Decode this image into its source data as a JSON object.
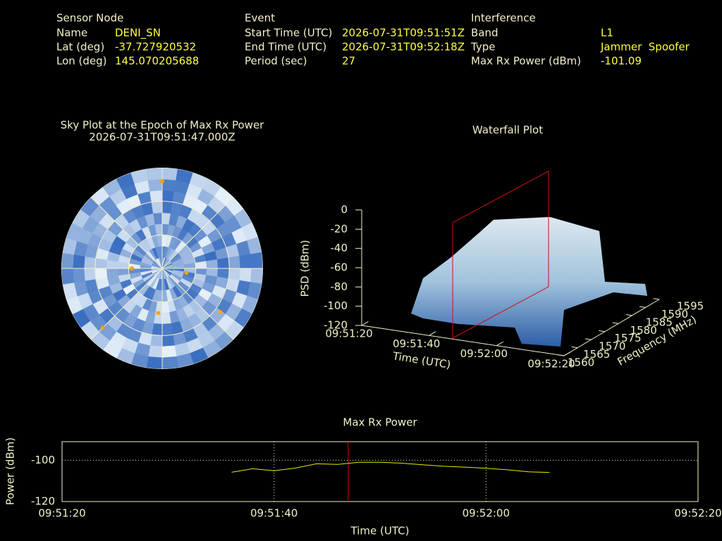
{
  "header": {
    "sensor_node": {
      "title": "Sensor Node",
      "fields": [
        {
          "label": "Name",
          "value": "DENI_SN"
        },
        {
          "label": "Lat (deg)",
          "value": "-37.727920532"
        },
        {
          "label": "Lon (deg)",
          "value": "145.070205688"
        }
      ]
    },
    "event": {
      "title": "Event",
      "fields": [
        {
          "label": "Start Time (UTC)",
          "value": "2026-07-31T09:51:51Z"
        },
        {
          "label": "End Time (UTC)",
          "value": "2026-07-31T09:52:18Z"
        },
        {
          "label": "Period (sec)",
          "value": "27"
        }
      ]
    },
    "interference": {
      "title": "Interference",
      "fields": [
        {
          "label": "Band",
          "value": "L1"
        },
        {
          "label": "Type",
          "value": "Jammer  Spoofer"
        },
        {
          "label": "Max Rx Power (dBm)",
          "value": "-101.09"
        }
      ]
    }
  },
  "chart_data": [
    {
      "type": "polar",
      "title": "Sky Plot at the Epoch of Max Rx Power",
      "subtitle": "2026-07-31T09:51:47.000Z",
      "azimuth": [
        0,
        270,
        100,
        185,
        127,
        225
      ],
      "elevation": [
        12,
        63,
        68,
        50,
        25,
        15
      ],
      "color": "#ffa500",
      "elevation_rings": [
        0,
        30,
        60
      ]
    },
    {
      "type": "surface3d",
      "title": "Waterfall Plot",
      "xlabel": "Time (UTC)",
      "ylabel": "Frequency (MHz)",
      "zlabel": "PSD (dBm)",
      "xlim": [
        "09:51:20",
        "09:52:20"
      ],
      "xticks": [
        "09:51:20",
        "09:51:40",
        "09:52:00",
        "09:52:20"
      ],
      "ylim": [
        1560,
        1595
      ],
      "yticks": [
        1560,
        1565,
        1570,
        1575,
        1580,
        1585,
        1590,
        1595
      ],
      "zlim": [
        -120,
        0
      ],
      "zticks": [
        0,
        -20,
        -40,
        -60,
        -80,
        -100,
        -120
      ]
    },
    {
      "type": "line",
      "title": "Max Rx Power",
      "xlabel": "Time (UTC)",
      "ylabel": "Power (dBm)",
      "x": [
        "09:51:36",
        "09:51:38",
        "09:51:40",
        "09:51:42",
        "09:51:44",
        "09:51:46",
        "09:51:48",
        "09:51:50",
        "09:51:52",
        "09:51:54",
        "09:51:56",
        "09:51:58",
        "09:52:00",
        "09:52:02",
        "09:52:04",
        "09:52:06"
      ],
      "values": [
        -105.8,
        -104.1,
        -105.1,
        -103.8,
        -101.7,
        -102.0,
        -101.0,
        -101.0,
        -101.4,
        -102.2,
        -102.9,
        -103.3,
        -103.9,
        -104.6,
        -105.6,
        -105.9
      ],
      "xlim": [
        "09:51:20",
        "09:52:20"
      ],
      "xticks": [
        "09:51:20",
        "09:51:40",
        "09:52:00",
        "09:52:20"
      ],
      "ylim": [
        -120,
        -91
      ],
      "yticks": [
        -120,
        -100
      ],
      "grid": true,
      "color": "#e8e800",
      "marker": "09:51:47",
      "marker_color": "#e00000"
    }
  ]
}
